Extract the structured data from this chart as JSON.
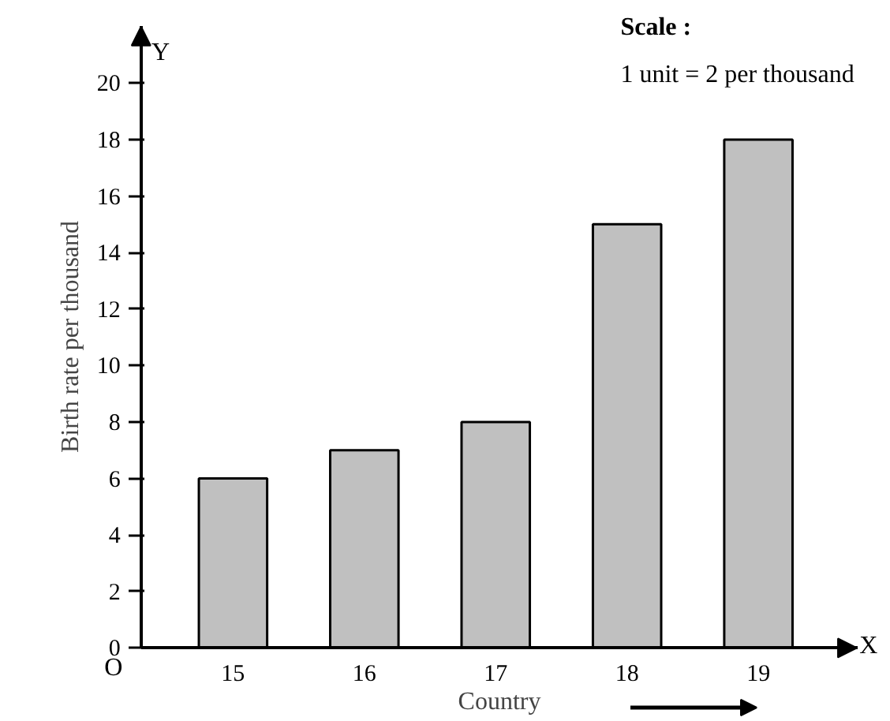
{
  "chart_data": {
    "type": "bar",
    "categories": [
      "15",
      "16",
      "17",
      "18",
      "19"
    ],
    "values": [
      6,
      7,
      8,
      15,
      18
    ],
    "color": "#c0c0c0",
    "ylim": [
      0,
      22
    ],
    "yticks": [
      0,
      2,
      4,
      6,
      8,
      10,
      12,
      14,
      16,
      18,
      20
    ],
    "xlabel": "Country",
    "ylabel": "Birth rate per thousand",
    "annotations": [
      "Scale :",
      "1 unit = 2 per thousand",
      "Y",
      "X",
      "O"
    ],
    "grid": false
  }
}
